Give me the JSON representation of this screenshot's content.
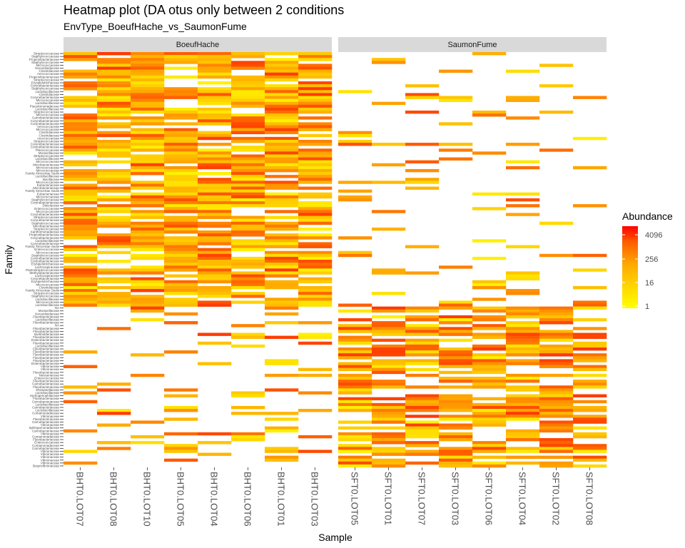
{
  "chart_data": {
    "type": "heatmap",
    "title": "Heatmap plot (DA otus only between 2 conditions",
    "subtitle": "EnvType_BoeufHache_vs_SaumonFume",
    "xlabel": "Sample",
    "ylabel": "Family",
    "facets": [
      {
        "name": "BoeufHache",
        "samples": [
          "BHT0.LOT07",
          "BHT0.LOT08",
          "BHT0.LOT10",
          "BHT0.LOT05",
          "BHT0.LOT04",
          "BHT0.LOT06",
          "BHT0.LOT01",
          "BHT0.LOT03"
        ]
      },
      {
        "name": "SaumonFume",
        "samples": [
          "SFT0.LOT05",
          "SFT0.LOT01",
          "SFT0.LOT07",
          "SFT0.LOT03",
          "SFT0.LOT06",
          "SFT0.LOT04",
          "SFT0.LOT02",
          "SFT0.LOT08"
        ]
      }
    ],
    "families": [
      "Streptococcaceae",
      "Staphylococcaceae",
      "Propionibacteriaceae",
      "Staphylococcaceae",
      "Micrococcaceae",
      "Nocardioidaceae",
      "Clostridiaceae",
      "Aerococcaceae",
      "Propionibacteriaceae",
      "Streptococcaceae",
      "Erysipelotrichaceae",
      "Corynebacteriaceae",
      "Staphylococcaceae",
      "Lactobacillaceae",
      "Clostridiaceae",
      "Corynebacteriaceae",
      "Micrococcaceae",
      "Lactobacillaceae",
      "Pseudomonadaceae",
      "Lactobacillaceae",
      "Streptococcaceae",
      "Micrococcaceae",
      "Carnobacteriaceae",
      "Corynebacteriaceae",
      "Corynebacteriaceae",
      "Aerococcaceae",
      "Micrococcaceae",
      "Clostridiaceae",
      "Clostridiaceae",
      "Aerococcaceae",
      "Streptococcaceae",
      "Corynebacteriaceae",
      "Corynebacteriaceae",
      "Planococcaceae",
      "Moraxellaceae",
      "Streptococcaceae",
      "Lactobacillaceae",
      "Micrococcaceae",
      "Microbacteriaceae",
      "Micrococcaceae",
      "Micrococcaceae",
      "Family XIIncertae Sedis",
      "Lactobacillaceae",
      "Bacillaceae",
      "Micrococcaceae",
      "Eubacteriaceae",
      "Microbacteriaceae",
      "Family XIIncertae Sedis",
      "Eubacteriaceae",
      "Micrococcaceae",
      "Staphylococcaceae",
      "Corynebacteriaceae",
      "Dietziaceae",
      "Enterococcaceae",
      "Micrococcaceae",
      "Corynebacteriaceae",
      "Streptococcaceae",
      "Corynebacteriaceae",
      "Staphylococcaceae",
      "Microbacteriaceae",
      "Streptococcaceae",
      "Xanthomonadaceae",
      "Propionibacteriaceae",
      "Corynebacteriaceae",
      "Lactobacillaceae",
      "Corynebacteriaceae",
      "Family XIIncertae Sedis",
      "Enterococcaceae",
      "Micrococcaceae",
      "Staphylococcaceae",
      "Corynebacteriaceae",
      "Corynebacteriaceae",
      "Erysipelotrichaceae",
      "Lachnospiraceae",
      "Peptostreptococcaceae",
      "Methylobacteriaceae",
      "Lachnospiraceae",
      "Corynebacteriaceae",
      "Erysipelotrichaceae",
      "Micrococcaceae",
      "Clostridiaceae",
      "Family XIIncertae Sedis",
      "Streptococcaceae",
      "Staphylococcaceae",
      "Lactobacillaceae",
      "Micrococcaceae",
      "Lactobacillaceae",
      "NA",
      "Moraxellaceae",
      "Nocardioidaceae",
      "Flavobacteriaceae",
      "Lactobacillaceae",
      "Flavobacteriaceae",
      "NA",
      "Flavobacteriaceae",
      "Flavobacteriaceae",
      "Burkholderiaceae",
      "Flavobacteriaceae",
      "Enterobacteriaceae",
      "Flavobacteriaceae",
      "Lactobacillaceae",
      "Flavobacteriaceae",
      "Flavobacteriaceae",
      "Flavobacteriaceae",
      "Flavobacteriaceae",
      "Flavobacteriaceae",
      "Enterobacteriaceae",
      "Vibrionaceae",
      "Vibrionaceae",
      "Flavobacteriaceae",
      "Neisseriaceae",
      "Enterococcaceae",
      "Flavobacteriaceae",
      "Carnobacteriaceae",
      "Flavobacteriaceae",
      "Shewanellaceae",
      "Lactobacillaceae",
      "Hydrogenophilaceae",
      "Flavobacteriaceae",
      "Carnobacteriaceae",
      "Lactobacillaceae",
      "Carnobacteriaceae",
      "Lactobacillaceae",
      "Comamonadaceae",
      "Vibrionaceae",
      "Flavobacteriaceae",
      "Carnobacteriaceae",
      "Vibrionaceae",
      "Sphingomonadaceae",
      "Carnobacteriaceae",
      "Vibrionaceae",
      "Comamonadaceae",
      "Flavobacteriaceae",
      "Enterococcaceae",
      "Comamonadaceae",
      "Carnobacteriaceae",
      "Vibrionaceae",
      "Vibrionaceae",
      "Vibrionaceae",
      "Vibrionaceae",
      "Vibrionaceae",
      "Butyrivibrionaceae"
    ],
    "scale": "log2",
    "fill_range": [
      1,
      16384
    ],
    "legend": {
      "title": "Abundance",
      "breaks": [
        1,
        16,
        256,
        4096
      ],
      "labels": [
        "4096",
        "256",
        "16",
        "1"
      ],
      "placement": "right",
      "colors": [
        "#ffff00",
        "#ffcc00",
        "#ffa500",
        "#ff6000",
        "#ff0000"
      ]
    },
    "na_color": "#ffffff",
    "grid": false,
    "note_values": "each row lists abundance per sample in facet order; 0 = not detected"
  },
  "labels": {
    "title": "Heatmap plot (DA otus only between 2 conditions",
    "subtitle": "EnvType_BoeufHache_vs_SaumonFume",
    "xlabel": "Sample",
    "ylabel": "Family",
    "facet1": "BoeufHache",
    "facet2": "SaumonFume",
    "legend_title": "Abundance",
    "legend_l1": "4096",
    "legend_l2": "256",
    "legend_l3": "16",
    "legend_l4": "1"
  }
}
